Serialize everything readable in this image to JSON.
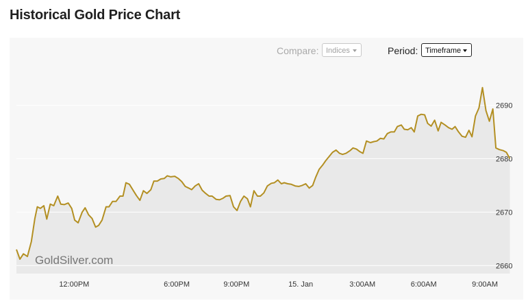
{
  "page": {
    "title": "Historical Gold Price Chart"
  },
  "controls": {
    "compare_label": "Compare:",
    "compare_value": "Indices",
    "period_label": "Period:",
    "period_value": "Timeframe"
  },
  "watermark": "GoldSilver.com",
  "colors": {
    "line": "#b38f22",
    "area": "#e9e9e9",
    "panel": "#f7f7f7",
    "grid": "#ffffff"
  },
  "chart_data": {
    "type": "area",
    "title": "",
    "xlabel": "",
    "ylabel": "",
    "ylim": [
      2658.5,
      2697.5
    ],
    "yticks": [
      2660,
      2670,
      2680,
      2690
    ],
    "ytick_labels": [
      "2660",
      "2670",
      "2680",
      "2690"
    ],
    "xlim": [
      0,
      100
    ],
    "xticks": [
      11.6,
      32.2,
      44.2,
      57.1,
      69.5,
      81.8,
      94.1
    ],
    "xtick_labels": [
      "12:00PM",
      "6:00PM",
      "9:00PM",
      "15. Jan",
      "3:00AM",
      "6:00AM",
      "9:00AM"
    ],
    "grid": true,
    "legend": "none",
    "series": [
      {
        "points": [
          [
            0.0,
            2663.0
          ],
          [
            0.7,
            2661.2
          ],
          [
            1.4,
            2662.2
          ],
          [
            2.2,
            2661.7
          ],
          [
            3.0,
            2664.5
          ],
          [
            3.7,
            2668.8
          ],
          [
            4.2,
            2671.0
          ],
          [
            4.8,
            2670.7
          ],
          [
            5.5,
            2671.2
          ],
          [
            6.1,
            2668.7
          ],
          [
            6.8,
            2671.5
          ],
          [
            7.5,
            2671.2
          ],
          [
            8.3,
            2673.0
          ],
          [
            8.9,
            2671.5
          ],
          [
            9.6,
            2671.4
          ],
          [
            10.4,
            2671.7
          ],
          [
            11.1,
            2670.7
          ],
          [
            11.7,
            2668.5
          ],
          [
            12.4,
            2668.0
          ],
          [
            13.2,
            2670.0
          ],
          [
            13.8,
            2670.8
          ],
          [
            14.5,
            2669.5
          ],
          [
            15.2,
            2668.8
          ],
          [
            15.9,
            2667.2
          ],
          [
            16.5,
            2667.5
          ],
          [
            17.2,
            2668.5
          ],
          [
            18.0,
            2671.0
          ],
          [
            18.6,
            2671.0
          ],
          [
            19.3,
            2672.0
          ],
          [
            20.0,
            2672.0
          ],
          [
            20.8,
            2673.0
          ],
          [
            21.4,
            2673.0
          ],
          [
            22.0,
            2675.5
          ],
          [
            22.7,
            2675.2
          ],
          [
            23.5,
            2674.0
          ],
          [
            24.1,
            2673.1
          ],
          [
            24.8,
            2672.2
          ],
          [
            25.5,
            2674.0
          ],
          [
            26.2,
            2673.5
          ],
          [
            27.0,
            2674.2
          ],
          [
            27.6,
            2675.8
          ],
          [
            28.3,
            2675.8
          ],
          [
            29.0,
            2676.2
          ],
          [
            29.7,
            2676.3
          ],
          [
            30.3,
            2676.8
          ],
          [
            31.0,
            2676.6
          ],
          [
            31.8,
            2676.7
          ],
          [
            32.5,
            2676.3
          ],
          [
            33.2,
            2675.7
          ],
          [
            33.9,
            2674.8
          ],
          [
            34.6,
            2674.5
          ],
          [
            35.2,
            2674.2
          ],
          [
            35.9,
            2674.9
          ],
          [
            36.6,
            2675.3
          ],
          [
            37.3,
            2674.1
          ],
          [
            38.0,
            2673.5
          ],
          [
            38.7,
            2673.0
          ],
          [
            39.3,
            2673.0
          ],
          [
            40.1,
            2672.4
          ],
          [
            40.8,
            2672.3
          ],
          [
            41.5,
            2672.6
          ],
          [
            42.1,
            2673.0
          ],
          [
            42.9,
            2673.1
          ],
          [
            43.6,
            2671.0
          ],
          [
            44.3,
            2670.3
          ],
          [
            45.0,
            2672.0
          ],
          [
            45.7,
            2673.0
          ],
          [
            46.4,
            2672.5
          ],
          [
            47.0,
            2671.0
          ],
          [
            47.7,
            2674.0
          ],
          [
            48.4,
            2673.0
          ],
          [
            49.0,
            2673.0
          ],
          [
            49.7,
            2673.6
          ],
          [
            50.4,
            2674.9
          ],
          [
            51.2,
            2675.4
          ],
          [
            51.8,
            2675.5
          ],
          [
            52.5,
            2676.0
          ],
          [
            53.2,
            2675.3
          ],
          [
            53.8,
            2675.5
          ],
          [
            54.5,
            2675.3
          ],
          [
            55.2,
            2675.2
          ],
          [
            56.0,
            2674.9
          ],
          [
            56.7,
            2674.8
          ],
          [
            57.4,
            2675.0
          ],
          [
            58.1,
            2675.3
          ],
          [
            58.8,
            2674.5
          ],
          [
            59.5,
            2675.0
          ],
          [
            60.1,
            2676.5
          ],
          [
            60.8,
            2678.0
          ],
          [
            61.5,
            2678.8
          ],
          [
            62.1,
            2679.6
          ],
          [
            62.8,
            2680.4
          ],
          [
            63.5,
            2681.2
          ],
          [
            64.2,
            2681.6
          ],
          [
            64.9,
            2681.0
          ],
          [
            65.5,
            2680.8
          ],
          [
            66.2,
            2681.0
          ],
          [
            67.0,
            2681.5
          ],
          [
            67.6,
            2682.0
          ],
          [
            68.3,
            2681.8
          ],
          [
            69.0,
            2681.3
          ],
          [
            69.6,
            2681.0
          ],
          [
            70.3,
            2683.3
          ],
          [
            71.1,
            2683.0
          ],
          [
            71.8,
            2683.2
          ],
          [
            72.4,
            2683.3
          ],
          [
            73.1,
            2683.8
          ],
          [
            73.8,
            2683.7
          ],
          [
            74.5,
            2684.7
          ],
          [
            75.2,
            2685.0
          ],
          [
            75.9,
            2685.0
          ],
          [
            76.5,
            2686.0
          ],
          [
            77.3,
            2686.3
          ],
          [
            77.9,
            2685.5
          ],
          [
            78.6,
            2685.4
          ],
          [
            79.3,
            2685.8
          ],
          [
            79.9,
            2685.0
          ],
          [
            80.6,
            2688.0
          ],
          [
            81.3,
            2688.3
          ],
          [
            82.0,
            2688.2
          ],
          [
            82.6,
            2686.6
          ],
          [
            83.3,
            2686.1
          ],
          [
            84.0,
            2687.2
          ],
          [
            84.7,
            2685.2
          ],
          [
            85.3,
            2686.8
          ],
          [
            86.1,
            2686.3
          ],
          [
            86.8,
            2685.8
          ],
          [
            87.5,
            2685.5
          ],
          [
            88.1,
            2686.0
          ],
          [
            88.8,
            2685.0
          ],
          [
            89.5,
            2684.2
          ],
          [
            90.2,
            2684.0
          ],
          [
            90.9,
            2685.3
          ],
          [
            91.5,
            2684.1
          ],
          [
            92.2,
            2688.0
          ],
          [
            92.9,
            2689.5
          ],
          [
            93.6,
            2693.3
          ],
          [
            94.3,
            2689.0
          ],
          [
            95.0,
            2687.0
          ],
          [
            95.7,
            2689.3
          ],
          [
            96.3,
            2682.0
          ],
          [
            97.0,
            2681.7
          ],
          [
            97.8,
            2681.5
          ],
          [
            98.4,
            2681.2
          ],
          [
            99.1,
            2680.0
          ]
        ]
      }
    ]
  }
}
